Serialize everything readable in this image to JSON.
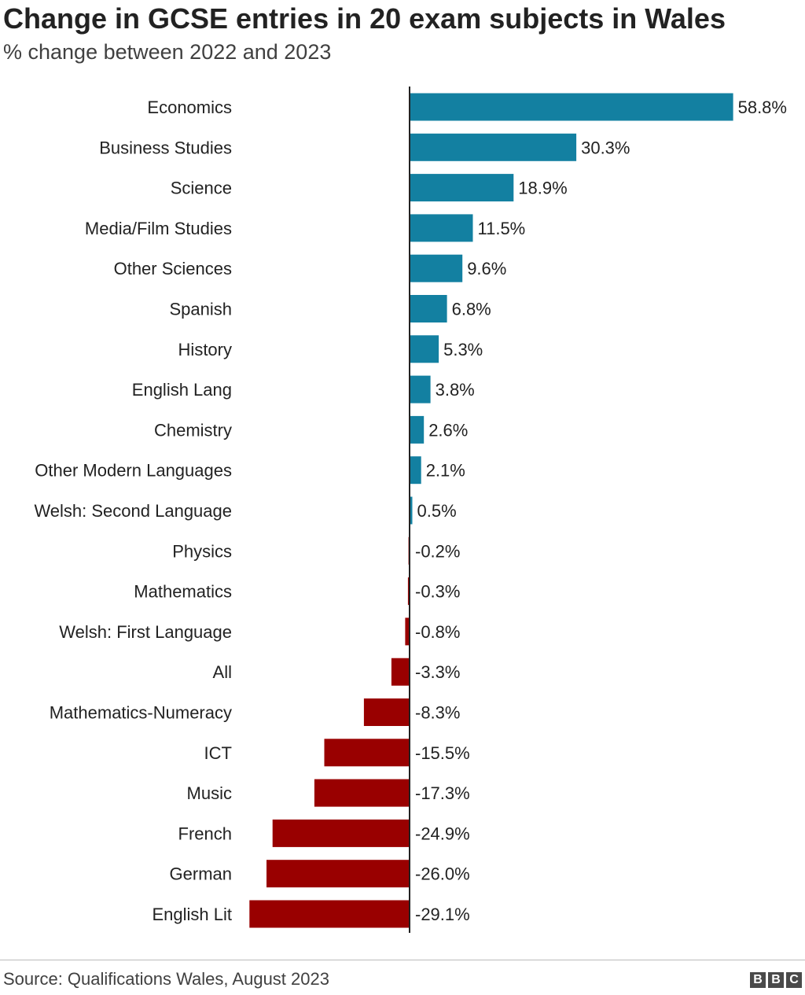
{
  "chart_data": {
    "type": "bar",
    "orientation": "horizontal",
    "title": "Change in GCSE entries in 20 exam subjects in Wales",
    "subtitle": "% change between 2022 and 2023",
    "categories": [
      "Economics",
      "Business Studies",
      "Science",
      "Media/Film Studies",
      "Other Sciences",
      "Spanish",
      "History",
      "English Lang",
      "Chemistry",
      "Other Modern Languages",
      "Welsh: Second Language",
      "Physics",
      "Mathematics",
      "Welsh: First Language",
      "All",
      "Mathematics-Numeracy",
      "ICT",
      "Music",
      "French",
      "German",
      "English Lit"
    ],
    "values": [
      58.8,
      30.3,
      18.9,
      11.5,
      9.6,
      6.8,
      5.3,
      3.8,
      2.6,
      2.1,
      0.5,
      -0.2,
      -0.3,
      -0.8,
      -3.3,
      -8.3,
      -15.5,
      -17.3,
      -24.9,
      -26.0,
      -29.1
    ],
    "value_labels": [
      "58.8%",
      "30.3%",
      "18.9%",
      "11.5%",
      "9.6%",
      "6.8%",
      "5.3%",
      "3.8%",
      "2.6%",
      "2.1%",
      "0.5%",
      "-0.2%",
      "-0.3%",
      "-0.8%",
      "-3.3%",
      "-8.3%",
      "-15.5%",
      "-17.3%",
      "-24.9%",
      "-26.0%",
      "-29.1%"
    ],
    "colors": {
      "positive": "#1380a1",
      "negative": "#990000",
      "axis": "#222222"
    },
    "legend": "none",
    "grid": false
  },
  "footer": {
    "source": "Source: Qualifications Wales, August 2023",
    "logo_letters": [
      "B",
      "B",
      "C"
    ]
  }
}
